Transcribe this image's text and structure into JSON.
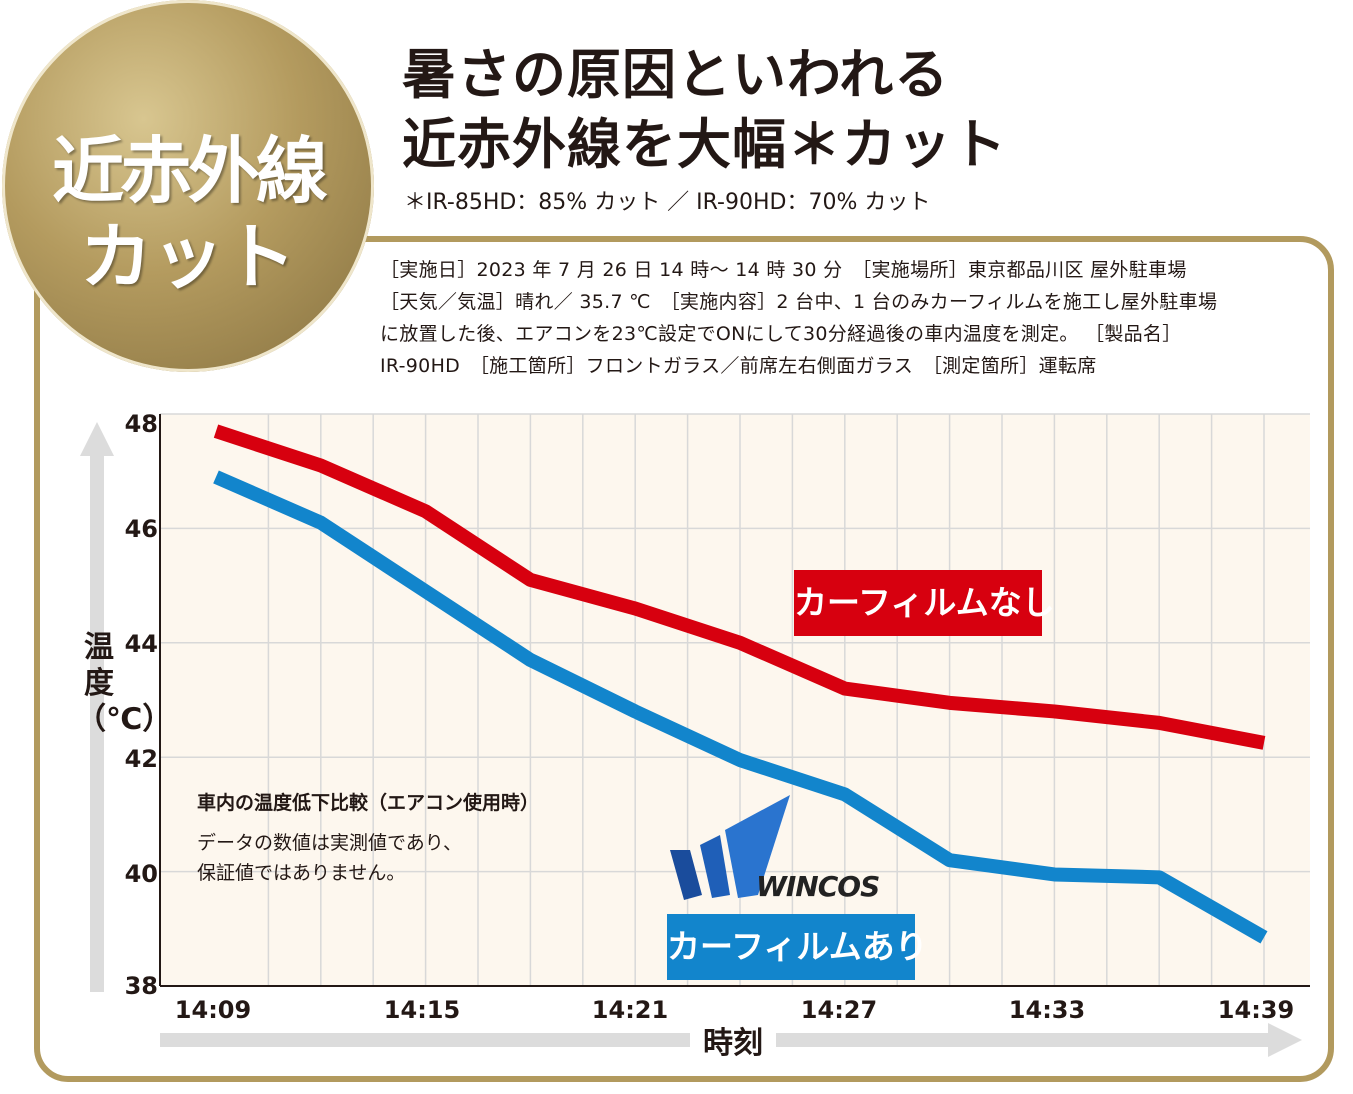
{
  "badge": {
    "line1": "近赤外線",
    "line2": "カット"
  },
  "headline": {
    "line1": "暑さの原因といわれる",
    "line2": "近赤外線を大幅＊カット"
  },
  "footnote": "＊IR-85HD：85% カット ／ IR-90HD：70% カット",
  "conditions": [
    "［実施日］2023 年 7 月 26 日 14 時〜 14 時 30 分　［実施場所］東京都品川区  屋外駐車場",
    "［天気／気温］晴れ／ 35.7 ℃　［実施内容］2 台中、1 台のみカーフィルムを施工し屋外駐車場",
    "に放置した後、エアコンを23℃設定でONにして30分経過後の車内温度を測定。 ［製品名］",
    "IR-90HD　［施工箇所］フロントガラス／前席左右側面ガラス　［測定箇所］運転席"
  ],
  "note": {
    "heading": "車内の温度低下比較（エアコン使用時）",
    "line1": "データの数値は実測値であり、",
    "line2": "保証値ではありません。"
  },
  "logo_text": "WINCOS",
  "colors": {
    "gold": "#b29a5e",
    "red": "#d7000f",
    "blue": "#1285cc",
    "plot_bg": "#fdf7ee"
  },
  "chart_data": {
    "type": "line",
    "xlabel": "時刻",
    "ylabel": "温度（℃）",
    "ylim": [
      38,
      48
    ],
    "yticks": [
      "48",
      "46",
      "44",
      "42",
      "40",
      "38"
    ],
    "xticks": [
      "14:09",
      "14:15",
      "14:21",
      "14:27",
      "14:33",
      "14:39"
    ],
    "x": [
      "14:09",
      "14:12",
      "14:15",
      "14:18",
      "14:21",
      "14:24",
      "14:27",
      "14:30",
      "14:33",
      "14:36",
      "14:39"
    ],
    "grid": true,
    "series": [
      {
        "name": "カーフィルムなし",
        "color": "#d7000f",
        "values": [
          47.7,
          47.1,
          46.3,
          45.1,
          44.6,
          44.0,
          43.2,
          42.95,
          42.8,
          42.6,
          42.25
        ]
      },
      {
        "name": "カーフィルムあり",
        "color": "#1285cc",
        "values": [
          46.9,
          46.1,
          44.9,
          43.7,
          42.8,
          41.95,
          41.35,
          40.2,
          39.95,
          39.9,
          38.85
        ]
      }
    ]
  }
}
